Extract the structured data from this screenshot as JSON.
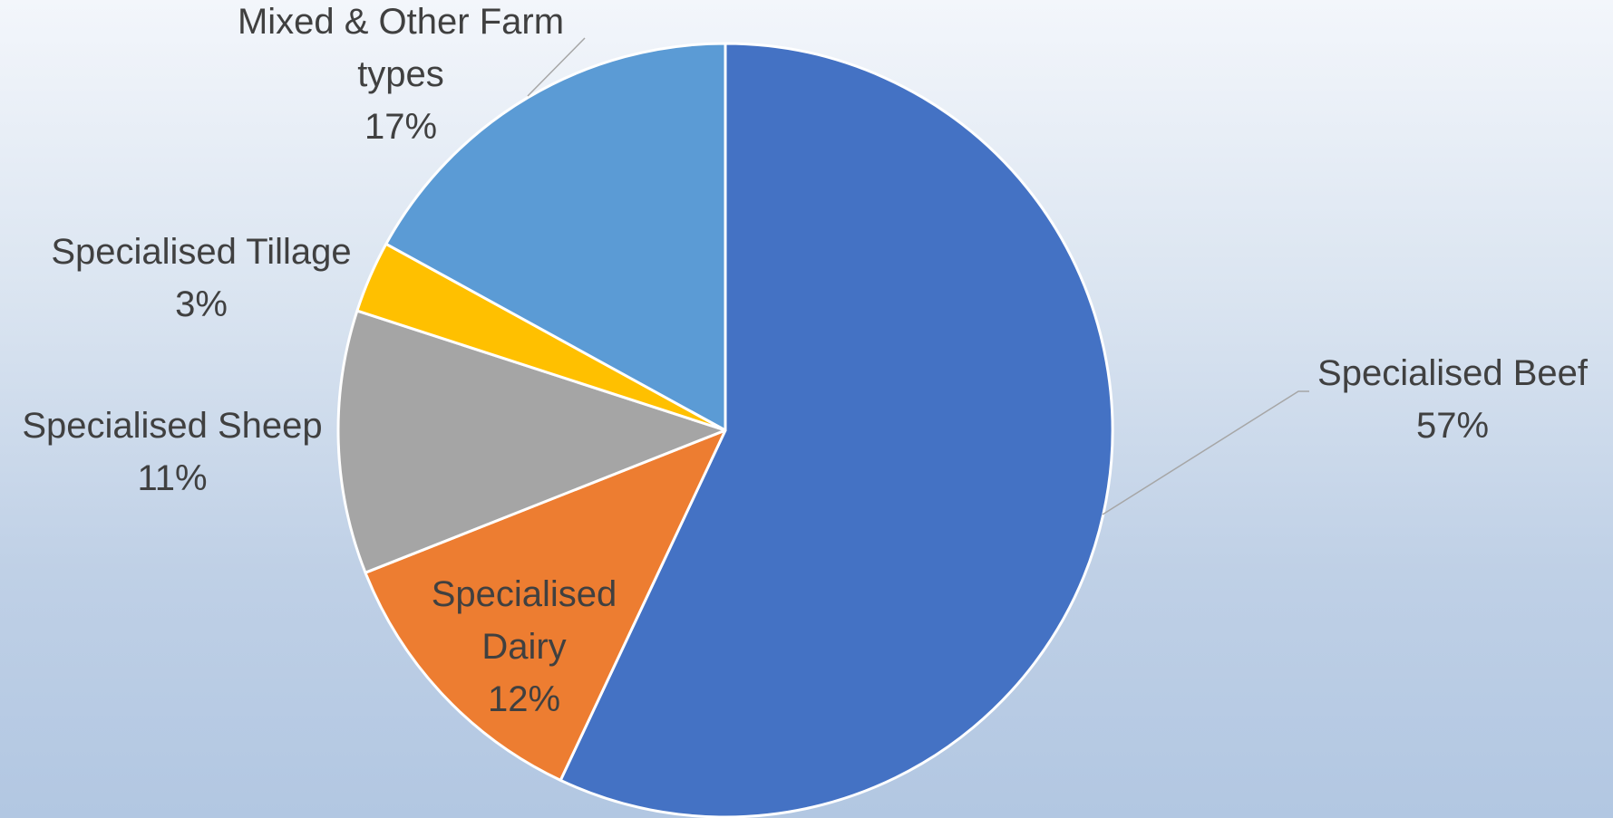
{
  "chart_data": {
    "type": "pie",
    "title": "",
    "start_angle_deg": 0,
    "direction": "clockwise",
    "slices": [
      {
        "label": "Specialised Beef",
        "value": 57,
        "value_label": "57%",
        "color": "#4472c4"
      },
      {
        "label": "Specialised Dairy",
        "value": 12,
        "value_label": "12%",
        "color": "#ed7d31"
      },
      {
        "label": "Specialised Sheep",
        "value": 11,
        "value_label": "11%",
        "color": "#a5a5a5"
      },
      {
        "label": "Specialised Tillage",
        "value": 3,
        "value_label": "3%",
        "color": "#ffc000"
      },
      {
        "label": "Mixed & Other Farm types",
        "value": 17,
        "value_label": "17%",
        "color": "#5b9bd5"
      }
    ],
    "legend": "none",
    "data_labels": "category-and-percent",
    "leader_line_color": "#a6a6a6",
    "slice_border_color": "#ffffff"
  }
}
